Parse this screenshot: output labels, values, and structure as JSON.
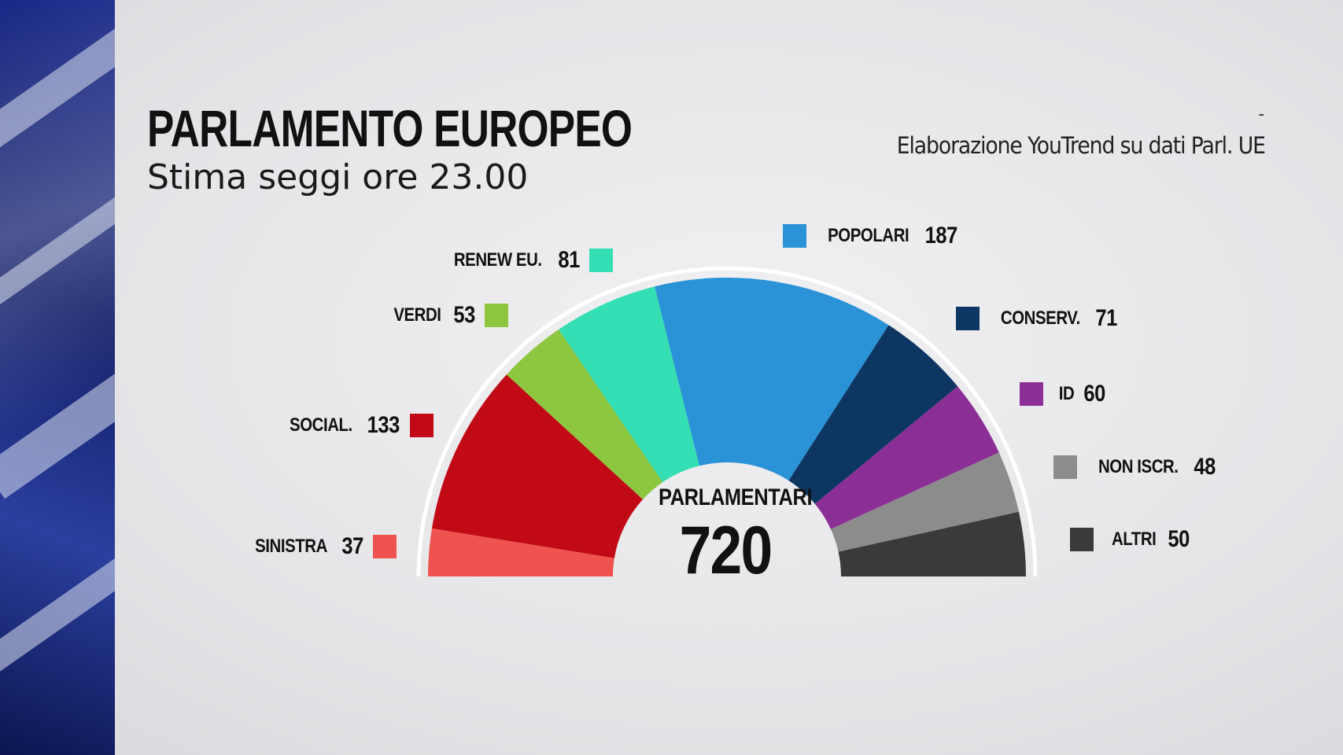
{
  "header": {
    "title": "PARLAMENTO EUROPEO",
    "subtitle": "Stima seggi ore 23.00",
    "source_dash": "-",
    "source": "Elaborazione YouTrend su dati Parl. UE"
  },
  "chart_data": {
    "type": "pie",
    "variant": "hemicycle",
    "center_label": "PARLAMENTARI",
    "total": 720,
    "series": [
      {
        "name": "SINISTRA",
        "value": 37,
        "color": "#ef5350"
      },
      {
        "name": "SOCIAL.",
        "value": 133,
        "color": "#c10a15"
      },
      {
        "name": "VERDI",
        "value": 53,
        "color": "#8dc63f"
      },
      {
        "name": "RENEW EU.",
        "value": 81,
        "color": "#35dfb5"
      },
      {
        "name": "POPOLARI",
        "value": 187,
        "color": "#2a92d6"
      },
      {
        "name": "CONSERV.",
        "value": 71,
        "color": "#0d3663"
      },
      {
        "name": "ID",
        "value": 60,
        "color": "#8b2f96"
      },
      {
        "name": "NON ISCR.",
        "value": 48,
        "color": "#8c8c8c"
      },
      {
        "name": "ALTRI",
        "value": 50,
        "color": "#3a3a3a"
      }
    ]
  }
}
